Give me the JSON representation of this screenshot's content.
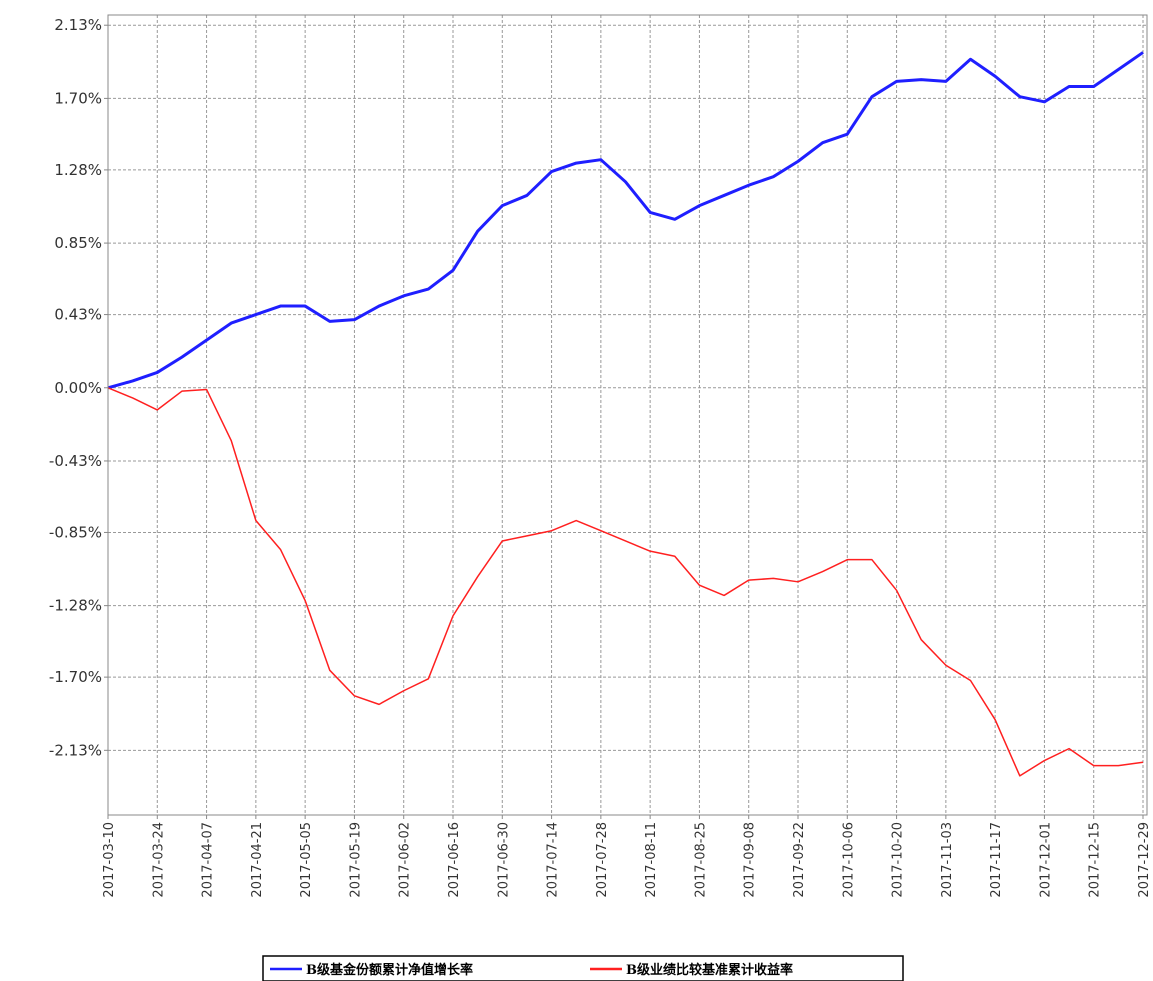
{
  "chart_data": {
    "type": "line",
    "x": [
      "2017-03-10",
      "2017-03-17",
      "2017-03-24",
      "2017-03-31",
      "2017-04-07",
      "2017-04-14",
      "2017-04-21",
      "2017-04-28",
      "2017-05-05",
      "2017-05-12",
      "2017-05-19",
      "2017-05-26",
      "2017-06-02",
      "2017-06-09",
      "2017-06-16",
      "2017-06-23",
      "2017-06-30",
      "2017-07-07",
      "2017-07-14",
      "2017-07-21",
      "2017-07-28",
      "2017-08-04",
      "2017-08-11",
      "2017-08-18",
      "2017-08-25",
      "2017-09-01",
      "2017-09-08",
      "2017-09-15",
      "2017-09-22",
      "2017-09-29",
      "2017-10-06",
      "2017-10-13",
      "2017-10-20",
      "2017-10-27",
      "2017-11-03",
      "2017-11-10",
      "2017-11-17",
      "2017-11-24",
      "2017-12-01",
      "2017-12-08",
      "2017-12-15",
      "2017-12-22",
      "2017-12-29"
    ],
    "series": [
      {
        "name": "B级基金份额累计净值增长率",
        "color": "#1f1fff",
        "values": [
          0,
          0.04,
          0.09,
          0.18,
          0.28,
          0.38,
          0.43,
          0.48,
          0.48,
          0.39,
          0.4,
          0.48,
          0.54,
          0.58,
          0.69,
          0.92,
          1.07,
          1.13,
          1.27,
          1.32,
          1.34,
          1.21,
          1.03,
          0.99,
          1.07,
          1.13,
          1.19,
          1.24,
          1.33,
          1.44,
          1.49,
          1.71,
          1.8,
          1.81,
          1.8,
          1.93,
          1.83,
          1.71,
          1.68,
          1.77,
          1.77,
          1.87,
          1.97
        ]
      },
      {
        "name": "B级业绩比较基准累计收益率",
        "color": "#ff2020",
        "values": [
          0,
          -0.06,
          -0.13,
          -0.02,
          -0.01,
          -0.31,
          -0.78,
          -0.95,
          -1.25,
          -1.66,
          -1.81,
          -1.86,
          -1.78,
          -1.71,
          -1.34,
          -1.11,
          -0.9,
          -0.87,
          -0.84,
          -0.78,
          -0.84,
          -0.9,
          -0.96,
          -0.99,
          -1.16,
          -1.22,
          -1.13,
          -1.12,
          -1.14,
          -1.08,
          -1.01,
          -1.01,
          -1.19,
          -1.48,
          -1.63,
          -1.72,
          -1.95,
          -2.28,
          -2.19,
          -2.12,
          -2.22,
          -2.22,
          -2.2
        ]
      }
    ],
    "xlim": [
      "2017-03-10",
      "2017-12-29"
    ],
    "xticks": [
      "2017-03-10",
      "2017-03-24",
      "2017-04-07",
      "2017-04-21",
      "2017-05-05",
      "2017-05-19",
      "2017-06-02",
      "2017-06-16",
      "2017-06-30",
      "2017-07-14",
      "2017-07-28",
      "2017-08-11",
      "2017-08-25",
      "2017-09-08",
      "2017-09-22",
      "2017-10-06",
      "2017-10-20",
      "2017-11-03",
      "2017-11-17",
      "2017-12-01",
      "2017-12-15",
      "2017-12-29"
    ],
    "ylim": [
      -2.51,
      2.19
    ],
    "yticks": [
      {
        "value": 2.13,
        "label": "2.13%"
      },
      {
        "value": 1.7,
        "label": "1.70%"
      },
      {
        "value": 1.28,
        "label": "1.28%"
      },
      {
        "value": 0.85,
        "label": "0.85%"
      },
      {
        "value": 0.43,
        "label": "0.43%"
      },
      {
        "value": 0,
        "label": "0.00%"
      },
      {
        "value": -0.43,
        "label": "-0.43%"
      },
      {
        "value": -0.85,
        "label": "-0.85%"
      },
      {
        "value": -1.28,
        "label": "-1.28%"
      },
      {
        "value": -1.7,
        "label": "-1.70%"
      },
      {
        "value": -2.13,
        "label": "-2.13%"
      }
    ],
    "grid": true
  }
}
